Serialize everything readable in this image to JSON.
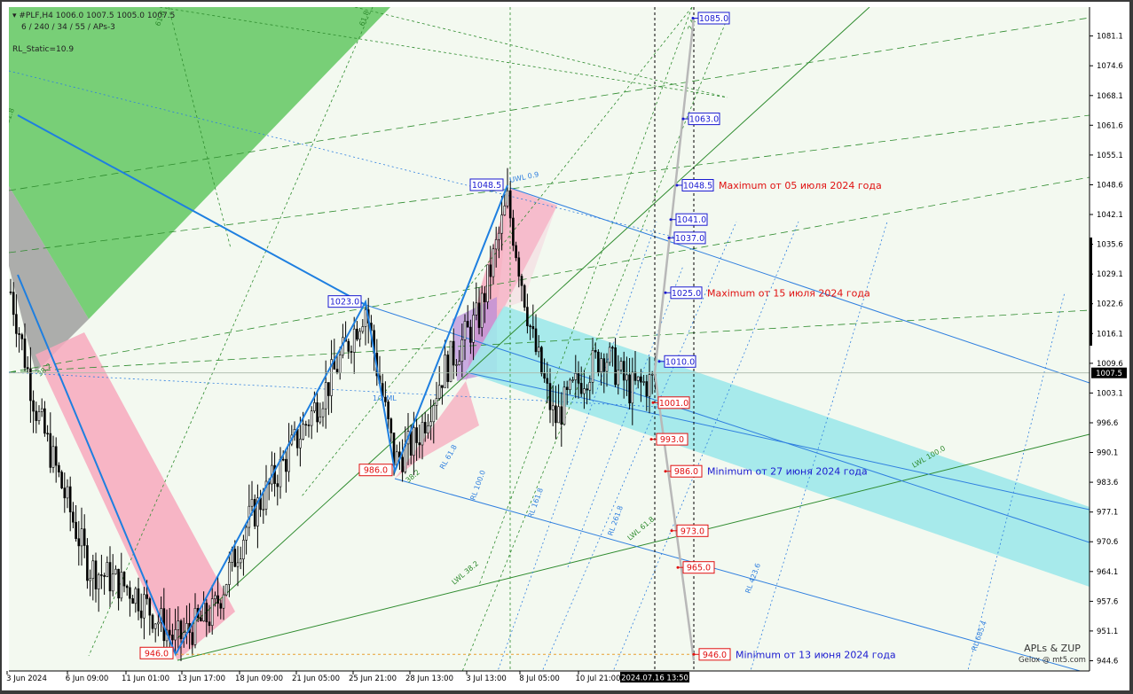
{
  "header": {
    "symbol_line": "#PLF,H4  1006.0 1007.5 1005.0 1007.5",
    "params_line": "6 / 240 / 34 / 55 / APs-3",
    "indicator_line": "RL_Static=10.9"
  },
  "watermark": {
    "line1": "APLs & ZUP",
    "line2": "Gelox @ mt5.com"
  },
  "chart_data": {
    "type": "candlestick",
    "symbol": "#PLF",
    "timeframe": "H4",
    "ylim": [
      942.5,
      1086.0
    ],
    "y_ticks": [
      1081.1,
      1074.6,
      1068.1,
      1061.6,
      1055.1,
      1048.6,
      1042.1,
      1035.6,
      1029.1,
      1022.6,
      1016.1,
      1009.6,
      1003.1,
      996.6,
      990.1,
      983.6,
      977.1,
      970.6,
      964.1,
      957.6,
      951.1,
      944.6
    ],
    "current_price": "1007.5",
    "x_ticks": [
      "3 Jun 2024",
      "6 Jun 09:00",
      "11 Jun 01:00",
      "13 Jun 17:00",
      "18 Jun 09:00",
      "21 Jun 05:00",
      "25 Jun 21:00",
      "28 Jun 13:00",
      "3 Jul 13:00",
      "8 Jul 05:00",
      "10 Jul 21:00"
    ],
    "cursor_time": "2024.07.16 13:50",
    "zigzag": [
      {
        "label": "946.0",
        "price": 946.0
      },
      {
        "label": "1023.0",
        "price": 1023.0
      },
      {
        "label": "986.0",
        "price": 986.0
      },
      {
        "label": "1048.5",
        "price": 1048.5
      }
    ],
    "price_levels": [
      {
        "value": "1085.0",
        "color": "#1a1ad0",
        "note": ""
      },
      {
        "value": "1063.0",
        "color": "#1a1ad0",
        "note": ""
      },
      {
        "value": "1048.5",
        "color": "#1a1ad0",
        "note": "Maximum от 05 июля 2024 года",
        "note_color": "#e01010"
      },
      {
        "value": "1041.0",
        "color": "#1a1ad0",
        "note": ""
      },
      {
        "value": "1037.0",
        "color": "#1a1ad0",
        "note": ""
      },
      {
        "value": "1025.0",
        "color": "#1a1ad0",
        "note": "Maximum от 15 июля 2024 года",
        "note_color": "#e01010"
      },
      {
        "value": "1010.0",
        "color": "#1a1ad0",
        "note": ""
      },
      {
        "value": "1001.0",
        "color": "#e01010",
        "note": ""
      },
      {
        "value": "993.0",
        "color": "#e01010",
        "note": ""
      },
      {
        "value": "986.0",
        "color": "#e01010",
        "note": "Minimum от 27 июня 2024 года",
        "note_color": "#1a1ad0"
      },
      {
        "value": "973.0",
        "color": "#e01010",
        "note": ""
      },
      {
        "value": "965.0",
        "color": "#e01010",
        "note": ""
      },
      {
        "value": "946.0",
        "color": "#e01010",
        "note": "Minimum от 13 июня 2024 года",
        "note_color": "#1a1ad0"
      }
    ],
    "line_labels": [
      "UWL 0.9",
      "1/2 ML",
      "LWL 38.2",
      "LWL 61.8",
      "LWL 100.0",
      "RL 61.8",
      "RL 100.0",
      "RL 161.8",
      "RL 261.8",
      "RL 423.6",
      "RL 685.4",
      "61.8",
      "38.2",
      "61.8",
      "61.8",
      "38.2",
      "2.4"
    ],
    "colors": {
      "bull_candle": "#ffffff",
      "bear_candle": "#000000",
      "zigzag": "#1e7fe0",
      "channel_cyan": "#9fe8ea",
      "fan_green": "#62c862",
      "band_pink": "#f7a9bd",
      "grid_green": "#2e8b2e",
      "grid_blue": "#2f7fdf"
    }
  }
}
